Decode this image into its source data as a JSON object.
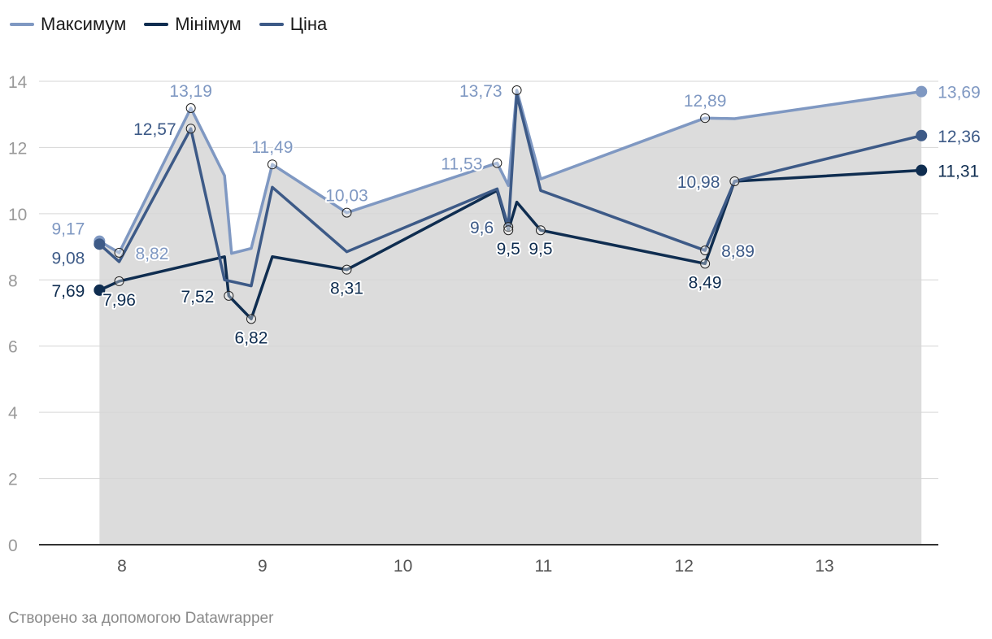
{
  "legend": [
    {
      "name": "Максимум",
      "color": "#7f98c2"
    },
    {
      "name": "Мінімум",
      "color": "#0f2d50"
    },
    {
      "name": "Ціна",
      "color": "#3d5a87"
    }
  ],
  "footer": "Створено за допомогою Datawrapper",
  "chart_data": {
    "type": "line",
    "title": "",
    "xlabel": "",
    "ylabel": "",
    "xlim": [
      7.6,
      13.8
    ],
    "ylim": [
      0,
      14
    ],
    "x_ticks": [
      8,
      9,
      10,
      11,
      12,
      13
    ],
    "y_ticks": [
      0,
      2,
      4,
      6,
      8,
      10,
      12,
      14
    ],
    "grid": true,
    "area_fill": "#dcdcdc",
    "series": [
      {
        "name": "Максимум",
        "color": "#7f98c2",
        "points": [
          [
            7.84,
            9.17
          ],
          [
            7.98,
            8.82
          ],
          [
            8.49,
            13.19
          ],
          [
            8.73,
            11.15
          ],
          [
            8.78,
            8.8
          ],
          [
            8.92,
            8.95
          ],
          [
            9.07,
            11.49
          ],
          [
            9.6,
            10.03
          ],
          [
            10.67,
            11.53
          ],
          [
            10.75,
            10.85
          ],
          [
            10.81,
            13.73
          ],
          [
            10.98,
            11.05
          ],
          [
            12.15,
            12.89
          ],
          [
            12.36,
            12.87
          ],
          [
            13.69,
            13.69
          ]
        ]
      },
      {
        "name": "Мінімум",
        "color": "#0f2d50",
        "points": [
          [
            7.84,
            7.69
          ],
          [
            7.98,
            7.96
          ],
          [
            8.73,
            8.7
          ],
          [
            8.76,
            7.52
          ],
          [
            8.92,
            6.82
          ],
          [
            9.07,
            8.7
          ],
          [
            9.6,
            8.31
          ],
          [
            10.67,
            10.7
          ],
          [
            10.75,
            9.5
          ],
          [
            10.81,
            10.35
          ],
          [
            10.98,
            9.5
          ],
          [
            12.15,
            8.49
          ],
          [
            12.36,
            10.98
          ],
          [
            13.69,
            11.31
          ]
        ]
      },
      {
        "name": "Ціна",
        "color": "#3d5a87",
        "points": [
          [
            7.84,
            9.08
          ],
          [
            7.98,
            8.55
          ],
          [
            8.49,
            12.57
          ],
          [
            8.73,
            8.0
          ],
          [
            8.92,
            7.82
          ],
          [
            9.07,
            10.8
          ],
          [
            9.6,
            8.85
          ],
          [
            10.67,
            10.75
          ],
          [
            10.75,
            9.6
          ],
          [
            10.81,
            13.6
          ],
          [
            10.98,
            10.7
          ],
          [
            12.15,
            8.89
          ],
          [
            12.36,
            10.98
          ],
          [
            13.69,
            12.36
          ]
        ]
      }
    ],
    "markers": [
      {
        "series": 0,
        "x": 7.84,
        "y": 9.17,
        "style": "filled"
      },
      {
        "series": 1,
        "x": 7.84,
        "y": 7.69,
        "style": "filled"
      },
      {
        "series": 2,
        "x": 7.84,
        "y": 9.08,
        "style": "filled"
      },
      {
        "series": 0,
        "x": 13.69,
        "y": 13.69,
        "style": "filled"
      },
      {
        "series": 2,
        "x": 13.69,
        "y": 12.36,
        "style": "filled"
      },
      {
        "series": 1,
        "x": 13.69,
        "y": 11.31,
        "style": "filled"
      },
      {
        "series": 0,
        "x": 7.98,
        "y": 8.82,
        "style": "open"
      },
      {
        "series": 1,
        "x": 7.98,
        "y": 7.96,
        "style": "open"
      },
      {
        "series": 0,
        "x": 8.49,
        "y": 13.19,
        "style": "open"
      },
      {
        "series": 2,
        "x": 8.49,
        "y": 12.57,
        "style": "open"
      },
      {
        "series": 1,
        "x": 8.76,
        "y": 7.52,
        "style": "open"
      },
      {
        "series": 1,
        "x": 8.92,
        "y": 6.82,
        "style": "open"
      },
      {
        "series": 0,
        "x": 9.07,
        "y": 11.49,
        "style": "open"
      },
      {
        "series": 0,
        "x": 9.6,
        "y": 10.03,
        "style": "open"
      },
      {
        "series": 1,
        "x": 9.6,
        "y": 8.31,
        "style": "open"
      },
      {
        "series": 0,
        "x": 10.67,
        "y": 11.53,
        "style": "open"
      },
      {
        "series": 2,
        "x": 10.75,
        "y": 9.6,
        "style": "open"
      },
      {
        "series": 1,
        "x": 10.75,
        "y": 9.5,
        "style": "open"
      },
      {
        "series": 0,
        "x": 10.81,
        "y": 13.73,
        "style": "open"
      },
      {
        "series": 1,
        "x": 10.98,
        "y": 9.5,
        "style": "open"
      },
      {
        "series": 0,
        "x": 12.15,
        "y": 12.89,
        "style": "open"
      },
      {
        "series": 2,
        "x": 12.15,
        "y": 8.89,
        "style": "open"
      },
      {
        "series": 1,
        "x": 12.15,
        "y": 8.49,
        "style": "open"
      },
      {
        "series": 2,
        "x": 12.36,
        "y": 10.98,
        "style": "open"
      }
    ],
    "labels": [
      {
        "text": "9,17",
        "x": 7.84,
        "y": 9.17,
        "series": 0,
        "pos": "nw"
      },
      {
        "text": "9,08",
        "x": 7.84,
        "y": 9.08,
        "series": 2,
        "pos": "sw"
      },
      {
        "text": "7,69",
        "x": 7.84,
        "y": 7.69,
        "series": 1,
        "pos": "w"
      },
      {
        "text": "8,82",
        "x": 7.98,
        "y": 8.82,
        "series": 0,
        "pos": "e"
      },
      {
        "text": "7,96",
        "x": 7.98,
        "y": 7.96,
        "series": 1,
        "pos": "s"
      },
      {
        "text": "13,19",
        "x": 8.49,
        "y": 13.19,
        "series": 0,
        "pos": "n"
      },
      {
        "text": "12,57",
        "x": 8.49,
        "y": 12.57,
        "series": 2,
        "pos": "w"
      },
      {
        "text": "7,52",
        "x": 8.76,
        "y": 7.52,
        "series": 1,
        "pos": "w"
      },
      {
        "text": "6,82",
        "x": 8.92,
        "y": 6.82,
        "series": 1,
        "pos": "s"
      },
      {
        "text": "11,49",
        "x": 9.07,
        "y": 11.49,
        "series": 0,
        "pos": "n"
      },
      {
        "text": "10,03",
        "x": 9.6,
        "y": 10.03,
        "series": 0,
        "pos": "n"
      },
      {
        "text": "8,31",
        "x": 9.6,
        "y": 8.31,
        "series": 1,
        "pos": "s"
      },
      {
        "text": "11,53",
        "x": 10.67,
        "y": 11.53,
        "series": 0,
        "pos": "w"
      },
      {
        "text": "9,6",
        "x": 10.75,
        "y": 9.6,
        "series": 2,
        "pos": "w"
      },
      {
        "text": "9,5",
        "x": 10.75,
        "y": 9.5,
        "series": 1,
        "pos": "s"
      },
      {
        "text": "13,73",
        "x": 10.81,
        "y": 13.73,
        "series": 0,
        "pos": "w"
      },
      {
        "text": "9,5",
        "x": 10.98,
        "y": 9.5,
        "series": 1,
        "pos": "s"
      },
      {
        "text": "12,89",
        "x": 12.15,
        "y": 12.89,
        "series": 0,
        "pos": "n"
      },
      {
        "text": "10,98",
        "x": 12.36,
        "y": 10.98,
        "series": 2,
        "pos": "w"
      },
      {
        "text": "8,89",
        "x": 12.15,
        "y": 8.89,
        "series": 2,
        "pos": "e"
      },
      {
        "text": "8,49",
        "x": 12.15,
        "y": 8.49,
        "series": 1,
        "pos": "s"
      },
      {
        "text": "13,69",
        "x": 13.69,
        "y": 13.69,
        "series": 0,
        "pos": "e"
      },
      {
        "text": "12,36",
        "x": 13.69,
        "y": 12.36,
        "series": 2,
        "pos": "e"
      },
      {
        "text": "11,31",
        "x": 13.69,
        "y": 11.31,
        "series": 1,
        "pos": "e"
      }
    ]
  }
}
